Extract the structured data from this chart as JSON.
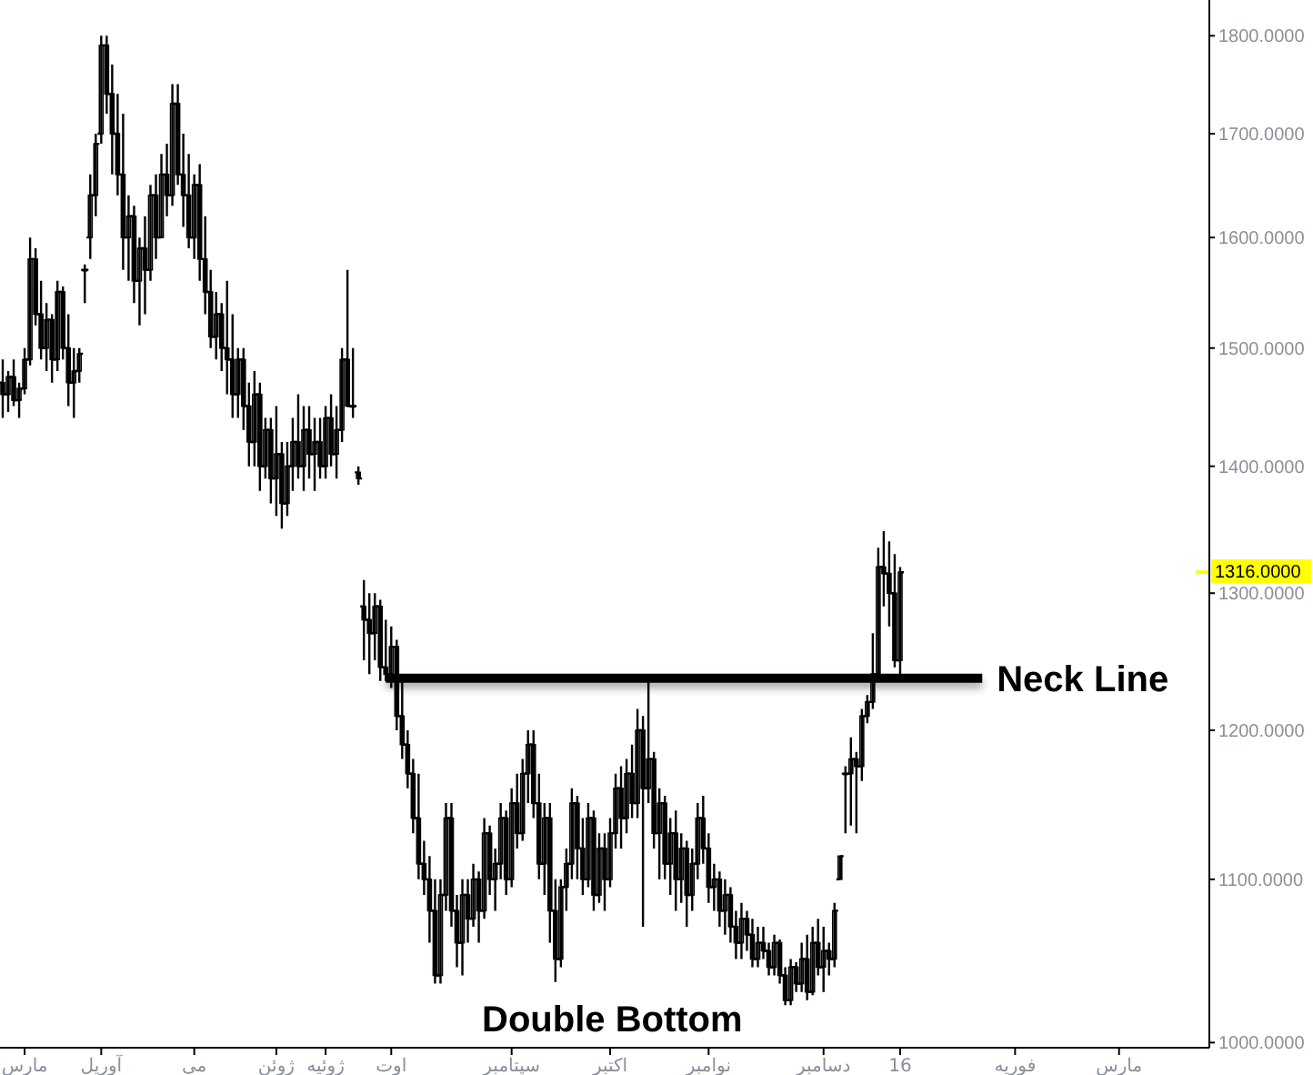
{
  "chart_data": {
    "type": "candlestick",
    "color": "#000000",
    "log": true,
    "ylim": [
      997,
      1838
    ],
    "yticks": [
      {
        "value": 1000,
        "label": "1000.0000"
      },
      {
        "value": 1100,
        "label": "1100.0000"
      },
      {
        "value": 1200,
        "label": "1200.0000"
      },
      {
        "value": 1300,
        "label": "1300.0000"
      },
      {
        "value": 1400,
        "label": "1400.0000"
      },
      {
        "value": 1500,
        "label": "1500.0000"
      },
      {
        "value": 1600,
        "label": "1600.0000"
      },
      {
        "value": 1700,
        "label": "1700.0000"
      },
      {
        "value": 1800,
        "label": "1800.0000"
      }
    ],
    "categories": [
      null,
      null,
      null,
      null,
      "مارس",
      null,
      null,
      null,
      null,
      null,
      null,
      null,
      null,
      null,
      null,
      null,
      null,
      null,
      "آوریل",
      null,
      null,
      null,
      null,
      null,
      null,
      null,
      null,
      null,
      null,
      null,
      null,
      null,
      null,
      null,
      null,
      "می",
      null,
      null,
      null,
      null,
      null,
      null,
      null,
      null,
      null,
      null,
      null,
      null,
      null,
      null,
      "ژوئن",
      null,
      null,
      null,
      null,
      null,
      null,
      null,
      null,
      "ژوئیه",
      null,
      null,
      null,
      null,
      null,
      null,
      null,
      null,
      null,
      null,
      null,
      "اوت",
      null,
      null,
      null,
      null,
      null,
      null,
      null,
      null,
      null,
      null,
      null,
      null,
      null,
      null,
      null,
      null,
      null,
      null,
      null,
      null,
      null,
      "سپتامبر",
      null,
      null,
      null,
      null,
      null,
      null,
      null,
      null,
      null,
      null,
      null,
      null,
      null,
      null,
      null,
      null,
      null,
      "اکتبر",
      null,
      null,
      null,
      null,
      null,
      null,
      null,
      null,
      null,
      null,
      null,
      null,
      null,
      null,
      null,
      null,
      null,
      "نوامبر",
      null,
      null,
      null,
      null,
      null,
      null,
      null,
      null,
      null,
      null,
      null,
      null,
      null,
      null,
      null,
      null,
      null,
      null,
      null,
      null,
      "دسامبر",
      null,
      null,
      null,
      null,
      null,
      null,
      null,
      null,
      null,
      null,
      null,
      null,
      null,
      "16",
      null,
      null,
      null,
      null,
      null,
      null,
      null,
      null,
      null,
      null,
      null,
      null,
      null,
      null,
      null,
      null,
      null,
      null,
      null,
      null,
      "فوریه",
      null,
      null,
      null,
      null,
      null,
      null,
      null,
      null,
      null,
      null,
      null,
      null,
      null,
      null,
      null,
      null,
      null,
      null,
      "مارس",
      null,
      null,
      null,
      null,
      null,
      null,
      null,
      null,
      null,
      null,
      null,
      null,
      null,
      null,
      null,
      null
    ],
    "ohlc": [
      [
        1470,
        1490,
        1440,
        1460
      ],
      [
        1460,
        1480,
        1445,
        1475
      ],
      [
        1475,
        1490,
        1450,
        1455
      ],
      [
        1455,
        1470,
        1440,
        1465
      ],
      [
        1465,
        1500,
        1460,
        1490
      ],
      [
        1490,
        1600,
        1485,
        1580
      ],
      [
        1580,
        1590,
        1520,
        1530
      ],
      [
        1530,
        1560,
        1490,
        1500
      ],
      [
        1500,
        1540,
        1480,
        1525
      ],
      [
        1525,
        1530,
        1470,
        1490
      ],
      [
        1490,
        1560,
        1480,
        1550
      ],
      [
        1550,
        1555,
        1490,
        1500
      ],
      [
        1500,
        1530,
        1450,
        1470
      ],
      [
        1470,
        1500,
        1440,
        1480
      ],
      [
        1480,
        1500,
        1470,
        1495
      ],
      [
        1570,
        1575,
        1540,
        1570
      ],
      [
        1600,
        1660,
        1580,
        1640
      ],
      [
        1640,
        1700,
        1620,
        1690
      ],
      [
        1700,
        1800,
        1690,
        1790
      ],
      [
        1790,
        1800,
        1720,
        1740
      ],
      [
        1740,
        1770,
        1660,
        1700
      ],
      [
        1700,
        1740,
        1640,
        1660
      ],
      [
        1660,
        1720,
        1570,
        1600
      ],
      [
        1600,
        1640,
        1560,
        1620
      ],
      [
        1620,
        1630,
        1540,
        1560
      ],
      [
        1560,
        1600,
        1520,
        1590
      ],
      [
        1590,
        1620,
        1530,
        1570
      ],
      [
        1570,
        1650,
        1560,
        1640
      ],
      [
        1640,
        1660,
        1580,
        1600
      ],
      [
        1600,
        1680,
        1600,
        1660
      ],
      [
        1660,
        1690,
        1620,
        1640
      ],
      [
        1640,
        1750,
        1630,
        1730
      ],
      [
        1730,
        1750,
        1650,
        1660
      ],
      [
        1660,
        1700,
        1610,
        1640
      ],
      [
        1640,
        1680,
        1590,
        1600
      ],
      [
        1600,
        1660,
        1580,
        1650
      ],
      [
        1650,
        1670,
        1560,
        1580
      ],
      [
        1580,
        1620,
        1530,
        1550
      ],
      [
        1550,
        1570,
        1500,
        1510
      ],
      [
        1510,
        1550,
        1490,
        1530
      ],
      [
        1530,
        1540,
        1480,
        1500
      ],
      [
        1500,
        1560,
        1460,
        1490
      ],
      [
        1490,
        1530,
        1440,
        1460
      ],
      [
        1460,
        1500,
        1440,
        1490
      ],
      [
        1490,
        1500,
        1430,
        1450
      ],
      [
        1450,
        1470,
        1400,
        1420
      ],
      [
        1420,
        1480,
        1400,
        1460
      ],
      [
        1460,
        1470,
        1380,
        1400
      ],
      [
        1400,
        1440,
        1390,
        1430
      ],
      [
        1430,
        1440,
        1370,
        1390
      ],
      [
        1390,
        1450,
        1360,
        1410
      ],
      [
        1410,
        1420,
        1350,
        1370
      ],
      [
        1370,
        1420,
        1360,
        1400
      ],
      [
        1400,
        1440,
        1380,
        1420
      ],
      [
        1420,
        1460,
        1390,
        1400
      ],
      [
        1400,
        1450,
        1380,
        1430
      ],
      [
        1430,
        1450,
        1390,
        1410
      ],
      [
        1410,
        1440,
        1380,
        1420
      ],
      [
        1420,
        1440,
        1390,
        1400
      ],
      [
        1400,
        1450,
        1390,
        1440
      ],
      [
        1440,
        1460,
        1400,
        1410
      ],
      [
        1410,
        1450,
        1390,
        1430
      ],
      [
        1430,
        1500,
        1420,
        1490
      ],
      [
        1490,
        1570,
        1450,
        1450
      ],
      [
        1450,
        1500,
        1440,
        1450
      ],
      [
        1395,
        1400,
        1385,
        1390
      ],
      [
        1290,
        1310,
        1250,
        1280
      ],
      [
        1280,
        1300,
        1240,
        1270
      ],
      [
        1270,
        1300,
        1250,
        1290
      ],
      [
        1290,
        1295,
        1235,
        1245
      ],
      [
        1245,
        1280,
        1235,
        1240
      ],
      [
        1240,
        1275,
        1230,
        1260
      ],
      [
        1260,
        1265,
        1200,
        1210
      ],
      [
        1210,
        1240,
        1180,
        1190
      ],
      [
        1190,
        1200,
        1160,
        1170
      ],
      [
        1170,
        1180,
        1130,
        1140
      ],
      [
        1140,
        1170,
        1100,
        1110
      ],
      [
        1110,
        1125,
        1090,
        1100
      ],
      [
        1100,
        1115,
        1060,
        1080
      ],
      [
        1080,
        1100,
        1035,
        1040
      ],
      [
        1040,
        1100,
        1035,
        1090
      ],
      [
        1090,
        1150,
        1080,
        1140
      ],
      [
        1140,
        1150,
        1070,
        1080
      ],
      [
        1080,
        1090,
        1045,
        1060
      ],
      [
        1060,
        1100,
        1040,
        1090
      ],
      [
        1090,
        1100,
        1060,
        1075
      ],
      [
        1075,
        1110,
        1070,
        1100
      ],
      [
        1100,
        1105,
        1060,
        1080
      ],
      [
        1080,
        1140,
        1075,
        1130
      ],
      [
        1130,
        1135,
        1090,
        1100
      ],
      [
        1100,
        1120,
        1080,
        1110
      ],
      [
        1110,
        1150,
        1100,
        1140
      ],
      [
        1140,
        1145,
        1090,
        1100
      ],
      [
        1100,
        1160,
        1095,
        1150
      ],
      [
        1150,
        1170,
        1120,
        1130
      ],
      [
        1130,
        1180,
        1125,
        1170
      ],
      [
        1170,
        1200,
        1150,
        1190
      ],
      [
        1190,
        1200,
        1140,
        1150
      ],
      [
        1150,
        1170,
        1100,
        1110
      ],
      [
        1110,
        1150,
        1090,
        1140
      ],
      [
        1140,
        1150,
        1060,
        1080
      ],
      [
        1080,
        1100,
        1036,
        1050
      ],
      [
        1050,
        1100,
        1045,
        1095
      ],
      [
        1095,
        1120,
        1080,
        1110
      ],
      [
        1110,
        1160,
        1100,
        1150
      ],
      [
        1150,
        1155,
        1100,
        1120
      ],
      [
        1120,
        1140,
        1090,
        1100
      ],
      [
        1100,
        1150,
        1095,
        1140
      ],
      [
        1140,
        1145,
        1080,
        1090
      ],
      [
        1090,
        1130,
        1085,
        1120
      ],
      [
        1120,
        1130,
        1080,
        1100
      ],
      [
        1100,
        1140,
        1095,
        1130
      ],
      [
        1130,
        1170,
        1120,
        1160
      ],
      [
        1160,
        1175,
        1120,
        1140
      ],
      [
        1140,
        1180,
        1130,
        1170
      ],
      [
        1170,
        1190,
        1140,
        1150
      ],
      [
        1150,
        1215,
        1140,
        1200
      ],
      [
        1200,
        1210,
        1070,
        1160
      ],
      [
        1160,
        1240,
        1150,
        1180
      ],
      [
        1180,
        1185,
        1120,
        1130
      ],
      [
        1130,
        1160,
        1100,
        1150
      ],
      [
        1150,
        1155,
        1100,
        1110
      ],
      [
        1110,
        1140,
        1090,
        1130
      ],
      [
        1130,
        1145,
        1080,
        1100
      ],
      [
        1100,
        1130,
        1085,
        1120
      ],
      [
        1120,
        1125,
        1070,
        1090
      ],
      [
        1090,
        1120,
        1080,
        1110
      ],
      [
        1110,
        1150,
        1100,
        1140
      ],
      [
        1140,
        1155,
        1110,
        1120
      ],
      [
        1120,
        1130,
        1085,
        1095
      ],
      [
        1095,
        1110,
        1080,
        1100
      ],
      [
        1100,
        1105,
        1070,
        1080
      ],
      [
        1080,
        1100,
        1065,
        1090
      ],
      [
        1090,
        1095,
        1060,
        1070
      ],
      [
        1070,
        1080,
        1050,
        1060
      ],
      [
        1060,
        1085,
        1050,
        1075
      ],
      [
        1075,
        1080,
        1055,
        1065
      ],
      [
        1065,
        1075,
        1045,
        1050
      ],
      [
        1050,
        1070,
        1045,
        1060
      ],
      [
        1060,
        1070,
        1050,
        1055
      ],
      [
        1055,
        1060,
        1040,
        1045
      ],
      [
        1045,
        1065,
        1040,
        1060
      ],
      [
        1060,
        1062,
        1035,
        1040
      ],
      [
        1040,
        1045,
        1022,
        1025
      ],
      [
        1025,
        1050,
        1022,
        1045
      ],
      [
        1045,
        1048,
        1030,
        1035
      ],
      [
        1035,
        1060,
        1030,
        1050
      ],
      [
        1050,
        1065,
        1025,
        1030
      ],
      [
        1030,
        1070,
        1028,
        1060
      ],
      [
        1060,
        1075,
        1040,
        1045
      ],
      [
        1045,
        1070,
        1030,
        1055
      ],
      [
        1055,
        1060,
        1040,
        1050
      ],
      [
        1050,
        1085,
        1045,
        1080
      ],
      [
        1100,
        1115,
        1100,
        1115
      ],
      [
        1170,
        1175,
        1130,
        1170
      ],
      [
        1170,
        1195,
        1135,
        1180
      ],
      [
        1180,
        1185,
        1130,
        1175
      ],
      [
        1175,
        1215,
        1165,
        1210
      ],
      [
        1210,
        1225,
        1205,
        1220
      ],
      [
        1220,
        1270,
        1215,
        1240
      ],
      [
        1240,
        1335,
        1235,
        1320
      ],
      [
        1320,
        1348,
        1290,
        1315
      ],
      [
        1315,
        1340,
        1275,
        1300
      ],
      [
        1300,
        1330,
        1245,
        1250
      ],
      [
        1250,
        1320,
        1240,
        1316
      ],
      null,
      null,
      null,
      null,
      null,
      null,
      null,
      null,
      null,
      null,
      null,
      null,
      null,
      null,
      null,
      null,
      null,
      null,
      null,
      null,
      null,
      null,
      null,
      null,
      null,
      null,
      null,
      null,
      null,
      null,
      null,
      null,
      null,
      null,
      null,
      null,
      null,
      null,
      null,
      null,
      null,
      null,
      null,
      null,
      null,
      null,
      null,
      null,
      null,
      null,
      null,
      null,
      null,
      null,
      null,
      null
    ],
    "series": [
      {
        "name": "Neck Line",
        "type": "line",
        "color": "#000000",
        "values": [
          null,
          null,
          null,
          null,
          null,
          null,
          null,
          null,
          null,
          null,
          null,
          null,
          null,
          null,
          null,
          null,
          null,
          null,
          null,
          null,
          null,
          null,
          null,
          null,
          null,
          null,
          null,
          null,
          null,
          null,
          null,
          null,
          null,
          null,
          null,
          null,
          null,
          null,
          null,
          null,
          null,
          null,
          null,
          null,
          null,
          null,
          null,
          null,
          null,
          null,
          null,
          null,
          null,
          null,
          null,
          null,
          null,
          null,
          null,
          null,
          null,
          null,
          null,
          null,
          null,
          null,
          null,
          null,
          null,
          null,
          1237,
          null,
          null,
          null,
          null,
          null,
          null,
          null,
          null,
          null,
          null,
          null,
          null,
          null,
          null,
          null,
          null,
          null,
          null,
          null,
          null,
          null,
          null,
          null,
          null,
          null,
          null,
          null,
          null,
          null,
          null,
          null,
          null,
          null,
          null,
          null,
          null,
          null,
          null,
          null,
          null,
          null,
          null,
          null,
          null,
          null,
          null,
          null,
          null,
          null,
          null,
          null,
          null,
          null,
          null,
          null,
          null,
          null,
          null,
          null,
          null,
          null,
          null,
          null,
          null,
          null,
          null,
          null,
          null,
          null,
          null,
          null,
          null,
          null,
          null,
          null,
          null,
          null,
          null,
          null,
          null,
          null,
          null,
          null,
          null,
          null,
          null,
          null,
          null,
          null,
          null,
          null,
          null,
          null,
          null,
          null,
          null,
          null,
          null,
          null,
          null,
          null,
          null,
          null,
          null,
          null,
          null,
          null,
          null,
          1237,
          null,
          null,
          null,
          null,
          null,
          null,
          null,
          null,
          null,
          null,
          null,
          null,
          null,
          null,
          null,
          null,
          null,
          null,
          null,
          null,
          null,
          null,
          null,
          null,
          null,
          null,
          null,
          null,
          null,
          null,
          null,
          null,
          null,
          null,
          null,
          null,
          null,
          null,
          null,
          null,
          null
        ]
      }
    ],
    "ref_lines": [
      {
        "axis": "y",
        "value": 1316,
        "label": "1316.0000",
        "color": "#ffff00"
      }
    ],
    "annotations": [
      "Double Bottom"
    ]
  }
}
